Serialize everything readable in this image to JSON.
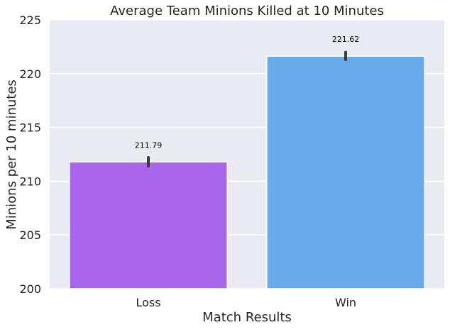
{
  "chart_data": {
    "type": "bar",
    "title": "Average Team Minions Killed at 10 Minutes",
    "xlabel": "Match Results",
    "ylabel": "Minions per 10 minutes",
    "categories": [
      "Loss",
      "Win"
    ],
    "values": [
      211.79,
      221.62
    ],
    "value_labels": [
      "211.79",
      "221.62"
    ],
    "error_bars": [
      [
        211.4,
        212.2
      ],
      [
        221.3,
        222.0
      ]
    ],
    "colors": [
      "#a866ec",
      "#69aaeb"
    ],
    "ylim": [
      200,
      225
    ],
    "yticks": [
      200,
      205,
      210,
      215,
      220,
      225
    ],
    "grid": true,
    "background": "#eaeaf2"
  }
}
